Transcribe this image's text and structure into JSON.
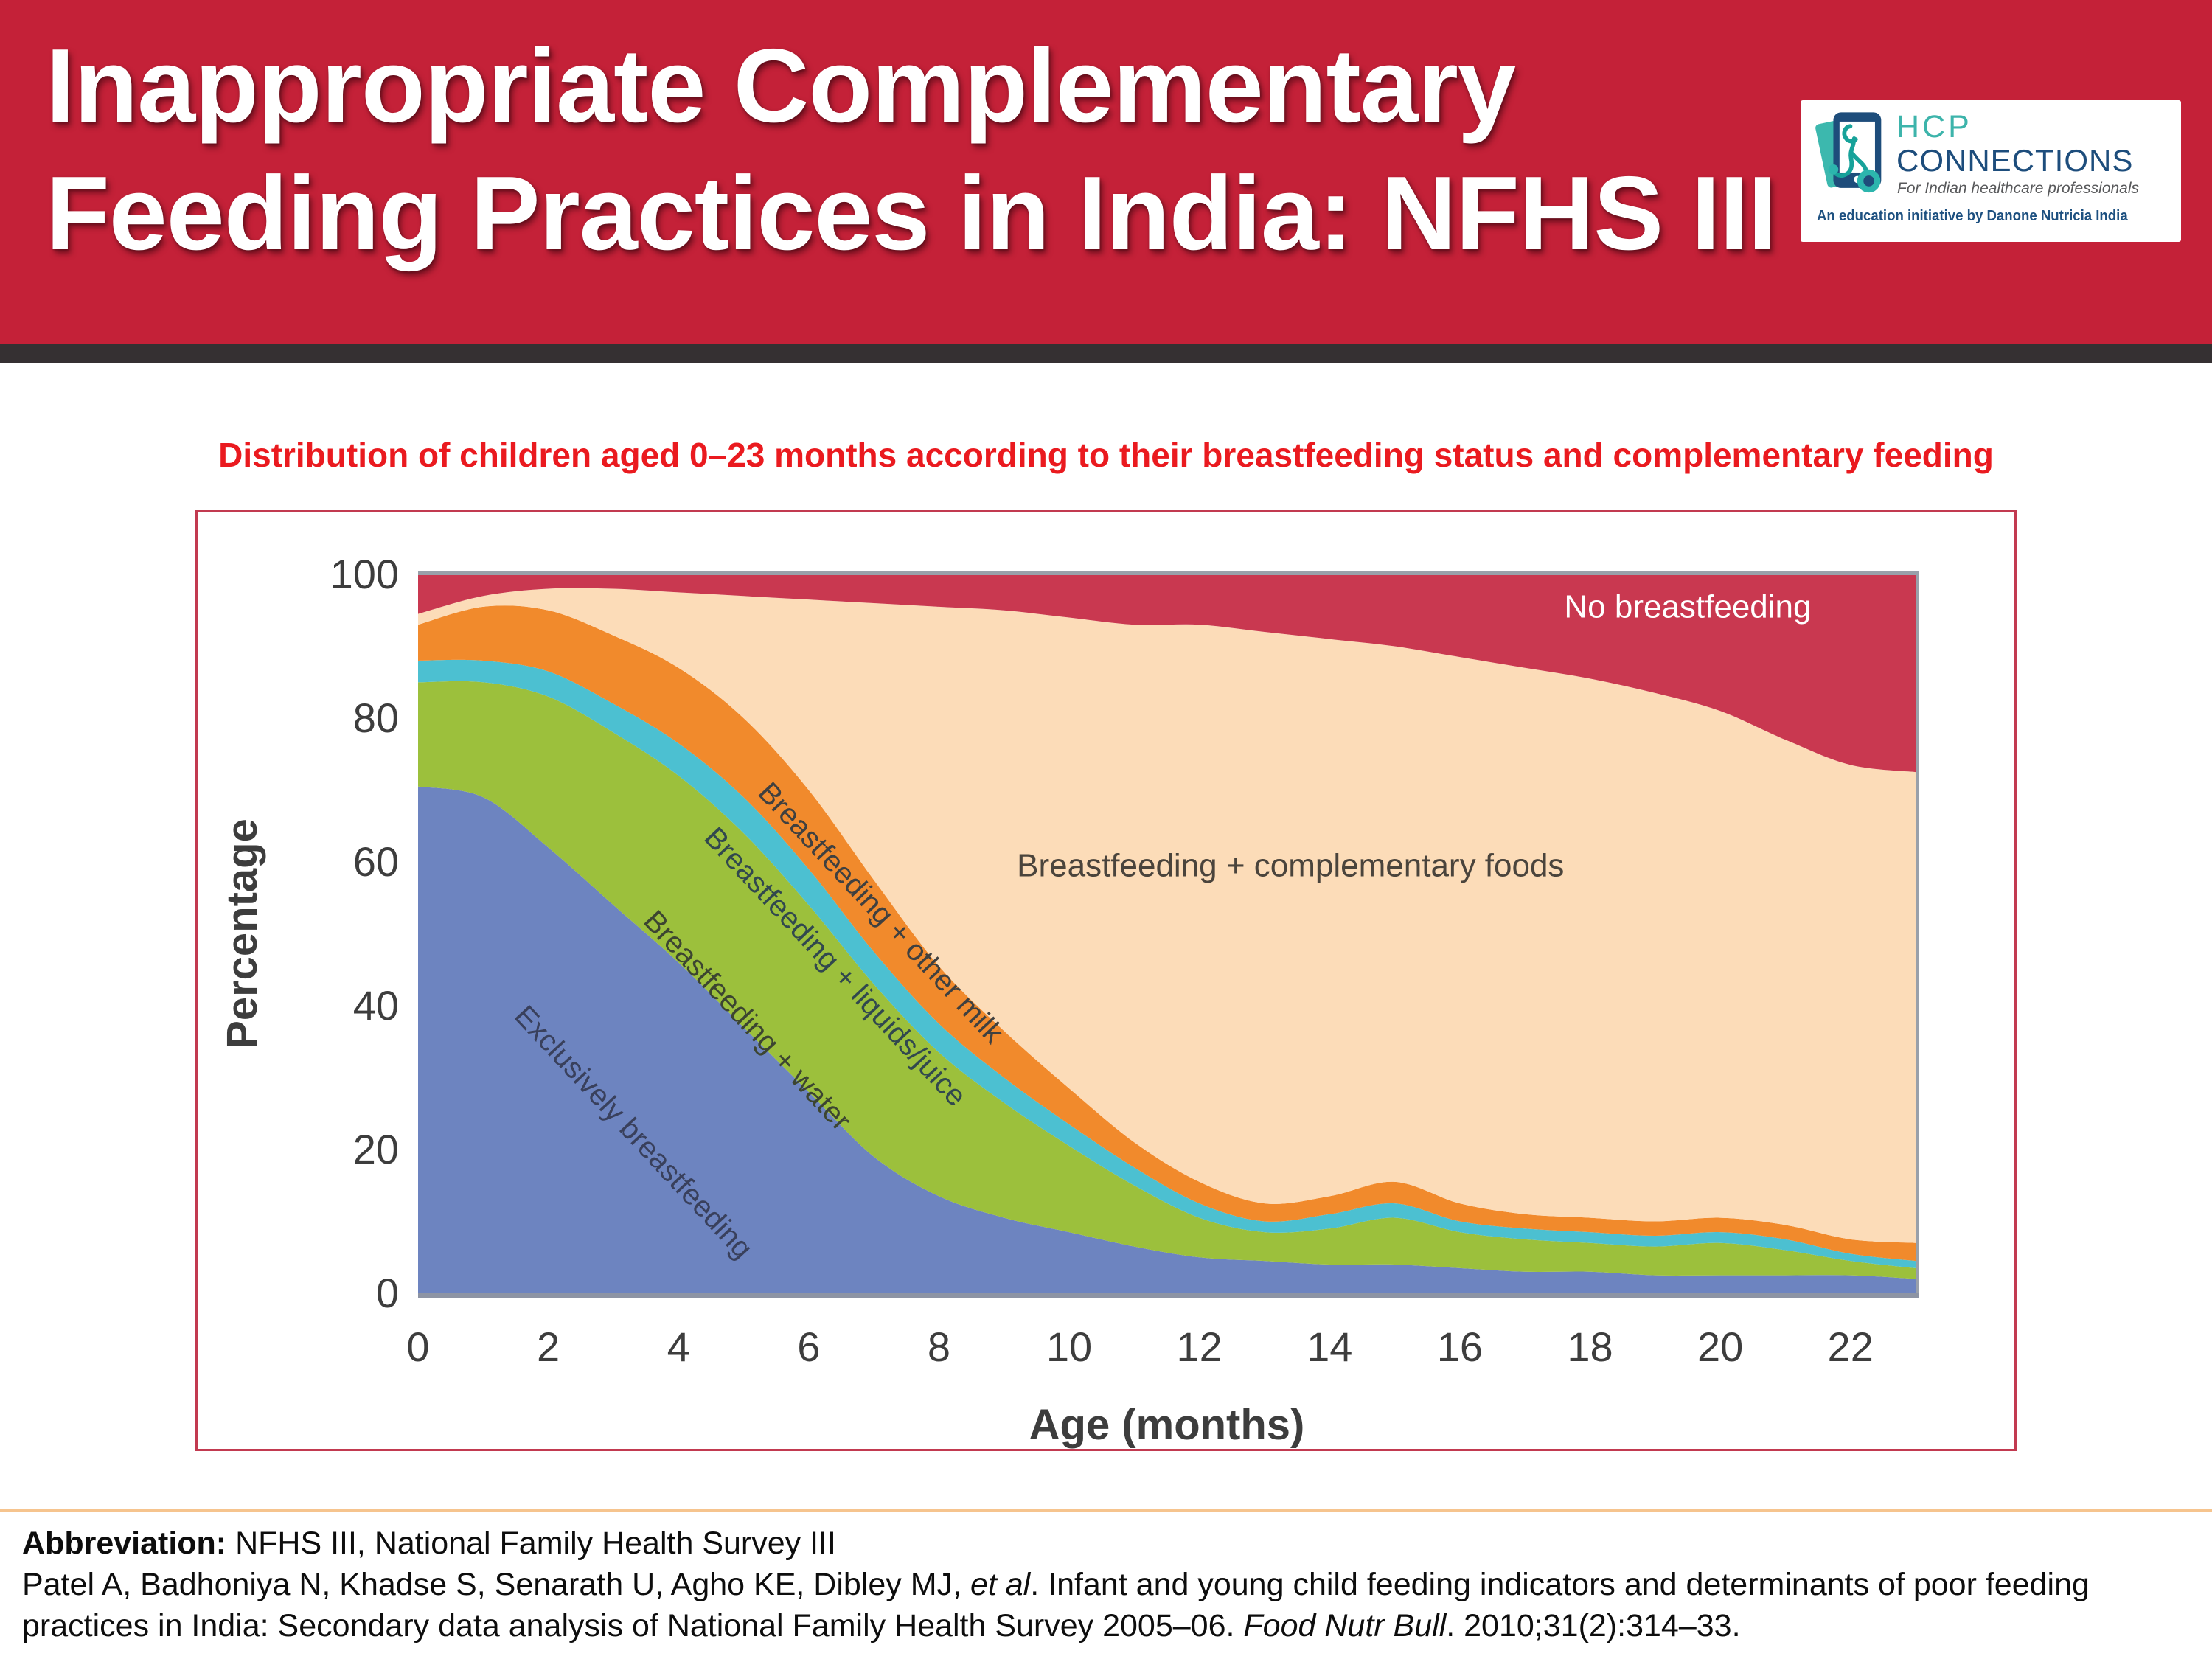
{
  "header": {
    "title_lines": [
      "Inappropriate Complementary",
      "Feeding Practices in India: NFHS III"
    ],
    "logo": {
      "name_line1": "HCP",
      "name_line2": "CONNECTIONS",
      "tagline": "For Indian healthcare professionals",
      "initiative": "An education initiative by Danone Nutricia India",
      "teal": "#3db4ab",
      "navy": "#1d4d7c"
    },
    "bg_color": "#c42138"
  },
  "subtitle": "Distribution of children aged 0–23 months according to their breastfeeding status and complementary feeding",
  "chart_data": {
    "type": "area",
    "stacked": true,
    "title": "",
    "xlabel": "Age (months)",
    "ylabel": "Percentage",
    "x": [
      0,
      1,
      2,
      3,
      4,
      5,
      6,
      7,
      8,
      9,
      10,
      11,
      12,
      13,
      14,
      15,
      16,
      17,
      18,
      19,
      20,
      21,
      22,
      23
    ],
    "xticks": [
      0,
      2,
      4,
      6,
      8,
      10,
      12,
      14,
      16,
      18,
      20,
      22
    ],
    "yticks": [
      0,
      20,
      40,
      60,
      80,
      100
    ],
    "xlim": [
      0,
      23
    ],
    "ylim": [
      0,
      100
    ],
    "grid": false,
    "legend_position": "in-plot annotations",
    "series": [
      {
        "name": "Exclusively breastfeeding",
        "color": "#6d84c0",
        "values": [
          70.5,
          69,
          62,
          54,
          46,
          37,
          28,
          19,
          13.5,
          10.5,
          8.5,
          6.5,
          5,
          4.5,
          4,
          4,
          3.5,
          3,
          3,
          2.5,
          2.5,
          2.5,
          2.5,
          2
        ]
      },
      {
        "name": "Breastfeeding + water",
        "color": "#9cc03c",
        "values": [
          14.5,
          16,
          21,
          24,
          26,
          27,
          26,
          24,
          20,
          16,
          12,
          8.5,
          5.5,
          4,
          5,
          6.5,
          5,
          4.5,
          4,
          4,
          4.5,
          3.5,
          2,
          1.5
        ]
      },
      {
        "name": "Breastfeeding + liquids/juice",
        "color": "#4cc0d1",
        "values": [
          3,
          3,
          3.5,
          4,
          4.5,
          5,
          5,
          4.5,
          4,
          3.5,
          3,
          2.5,
          2,
          1.5,
          2,
          2,
          1.5,
          1.5,
          1.5,
          1.5,
          1.5,
          1.5,
          1,
          1
        ]
      },
      {
        "name": "Breastfeeding + other milk",
        "color": "#f18a2c",
        "values": [
          5,
          7.5,
          8.5,
          9.5,
          10.5,
          11,
          11,
          10,
          8,
          6.5,
          5,
          3.5,
          3,
          2.5,
          2.5,
          3,
          2.5,
          2,
          2,
          2,
          2,
          2,
          2,
          2.5
        ]
      },
      {
        "name": "Breastfeeding + complementary foods",
        "color": "#fcdcb8",
        "values": [
          1.5,
          1.5,
          3,
          6.5,
          10.5,
          17,
          26.5,
          38.5,
          50,
          58.5,
          65.5,
          72,
          77.5,
          79.5,
          77.5,
          74.5,
          76,
          76,
          75,
          73.5,
          70.5,
          67.5,
          66,
          65.5
        ]
      },
      {
        "name": "No breastfeeding",
        "color": "#c93850",
        "values": [
          5.5,
          3,
          2,
          2,
          2.5,
          3,
          3.5,
          4,
          4.5,
          5,
          6,
          7,
          7,
          8,
          9,
          10,
          11.5,
          13,
          14.5,
          16.5,
          19,
          23,
          26.5,
          27.5
        ]
      }
    ],
    "annotations": [
      {
        "text": "No breastfeeding",
        "month": 19.5,
        "pct": 94,
        "rotate": 0,
        "color": "#ffffff",
        "size": 44
      },
      {
        "text": "Breastfeeding + complementary foods",
        "month": 13.4,
        "pct": 58,
        "rotate": 0,
        "color": "#4a443c",
        "size": 44
      },
      {
        "text": "Breastfeeding + other milk",
        "month": 7.0,
        "pct": 52,
        "rotate": 47,
        "color": "#3f4040",
        "size": 40
      },
      {
        "text": "Breastfeeding + liquids/juice",
        "month": 6.3,
        "pct": 44.5,
        "rotate": 47,
        "color": "#31484e",
        "size": 40
      },
      {
        "text": "Breastfeeding + water",
        "month": 4.95,
        "pct": 37,
        "rotate": 47,
        "color": "#3c4531",
        "size": 40
      },
      {
        "text": "Exclusively breastfeeding",
        "month": 3.2,
        "pct": 21.5,
        "rotate": 47,
        "color": "#39405c",
        "size": 40
      }
    ],
    "axis_text_color": "#3d3d3d",
    "spine_color": "#99a0aa"
  },
  "footer": {
    "abbreviation_label": "Abbreviation:",
    "abbreviation_text": " NFHS III, National Family Health Survey III",
    "citation_segments": [
      {
        "text": "Patel A, Badhoniya N, Khadse S, Senarath U, Agho KE, Dibley MJ, ",
        "italic": false
      },
      {
        "text": "et al",
        "italic": true
      },
      {
        "text": ". Infant and young child feeding indicators and determinants of poor feeding practices in India: Secondary data analysis of National Family Health Survey 2005–06. ",
        "italic": false
      },
      {
        "text": "Food Nutr Bull",
        "italic": true
      },
      {
        "text": ". 2010;31(2):314–33.",
        "italic": false
      }
    ]
  }
}
